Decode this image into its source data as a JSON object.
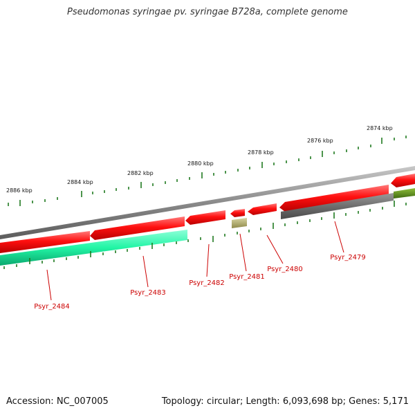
{
  "title": "Pseudomonas syringae pv. syringae B728a, complete genome",
  "kbp_labels": [
    "2874 kbp",
    "2876 kbp",
    "2878 kbp",
    "2880 kbp",
    "2882 kbp",
    "2884 kbp",
    "2886 kbp"
  ],
  "genes": [
    {
      "label": "Psyr_2479",
      "strand": "reverse",
      "color": "#ff0000"
    },
    {
      "label": "Psyr_2480",
      "strand": "reverse",
      "color": "#ff0000"
    },
    {
      "label": "Psyr_2481",
      "strand": "forward",
      "color": "#b7b37a"
    },
    {
      "label": "Psyr_2482",
      "strand": "reverse",
      "color": "#ff0000"
    },
    {
      "label": "Psyr_2483",
      "strand": "reverse",
      "color": "#ff0000"
    },
    {
      "label": "Psyr_2484",
      "strand": "forward",
      "color": "#22ffaa"
    }
  ],
  "colors": {
    "backbone": "#8c8c8c",
    "tick": "#1f7a1f",
    "label_text": "#cc0000",
    "gray_feature": "#6e6e6e",
    "olive_feature": "#5a8a1e"
  },
  "footer": {
    "accession_label": "Accession:",
    "accession": "NC_007005",
    "topology_label": "Topology:",
    "topology": "circular;",
    "length_label": "Length:",
    "length": "6,093,698 bp;",
    "genes_label": "Genes:",
    "genes_count": "5,171"
  }
}
